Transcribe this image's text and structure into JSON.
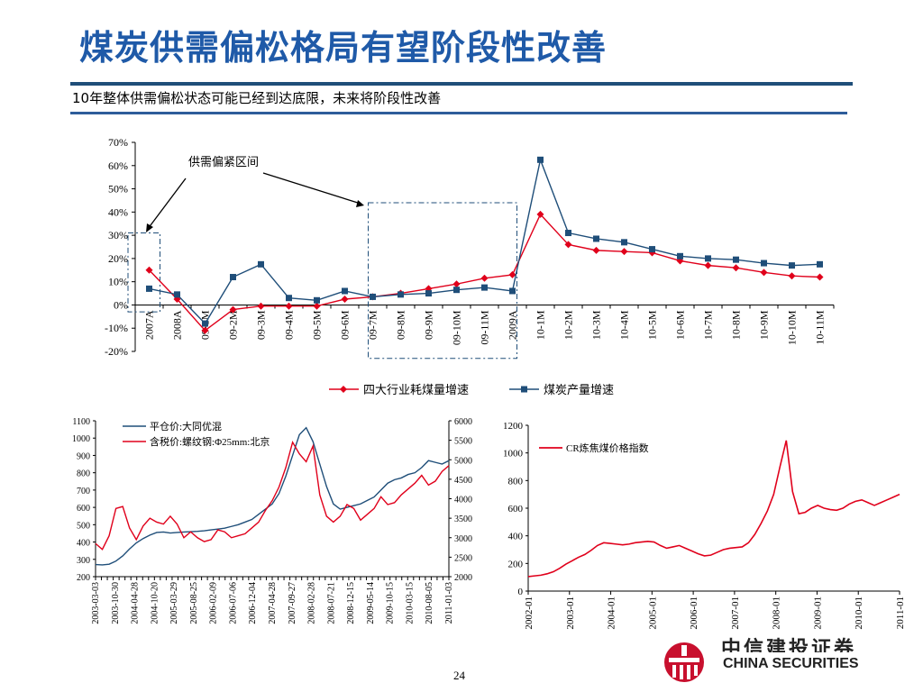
{
  "slide": {
    "title": "煤炭供需偏松格局有望阶段性改善",
    "subtitle": "10年整体供需偏松状态可能已经到达底限，未来将阶段性改善",
    "page_number": "24",
    "logo": {
      "cn": "中信建投证券",
      "en": "CHINA SECURITIES",
      "color": "#c8102e"
    }
  },
  "chart_data": [
    {
      "type": "line",
      "categories": [
        "2007A",
        "2008A",
        "09-1M",
        "09-2M",
        "09-3M",
        "09-4M",
        "09-5M",
        "09-6M",
        "09-7M",
        "09-8M",
        "09-9M",
        "09-10M",
        "09-11M",
        "2009A",
        "10-1M",
        "10-2M",
        "10-3M",
        "10-4M",
        "10-5M",
        "10-6M",
        "10-7M",
        "10-8M",
        "10-9M",
        "10-10M",
        "10-11M"
      ],
      "ylim": [
        -20,
        70
      ],
      "yticks": [
        "-20%",
        "-10%",
        "0%",
        "10%",
        "20%",
        "30%",
        "40%",
        "50%",
        "60%",
        "70%"
      ],
      "series": [
        {
          "name": "四大行业耗煤量增速",
          "color": "#e0001b",
          "marker": "diamond",
          "values": [
            15,
            2.5,
            -11,
            -2,
            -0.5,
            -0.5,
            -0.5,
            2.5,
            3.5,
            5,
            7,
            9,
            11.5,
            13,
            39,
            26,
            23.5,
            23,
            22.5,
            19,
            17,
            16,
            14,
            12.5,
            12
          ]
        },
        {
          "name": "煤炭产量增速",
          "color": "#1f4e79",
          "marker": "square",
          "values": [
            7,
            4.5,
            -8,
            12,
            17.5,
            3,
            2,
            6,
            3.5,
            4.5,
            5,
            6.5,
            7.5,
            6,
            62.5,
            31,
            28.5,
            27,
            24,
            21,
            20,
            19.5,
            18,
            17,
            17.5
          ]
        }
      ],
      "annotation": "供需偏紧区间",
      "legend": "bottom"
    },
    {
      "type": "line",
      "x_ticks": [
        "2003-03-03",
        "2003-10-30",
        "2004-04-28",
        "2004-10-20",
        "2005-03-29",
        "2005-08-25",
        "2006-02-09",
        "2006-07-06",
        "2006-12-04",
        "2007-04-28",
        "2007-09-27",
        "2008-02-28",
        "2008-07-21",
        "2008-12-15",
        "2009-05-14",
        "2009-10-15",
        "2010-03-15",
        "2010-08-05",
        "2011-01-03"
      ],
      "y_left": {
        "ylim": [
          200,
          1100
        ],
        "ticks": [
          "200",
          "300",
          "400",
          "500",
          "600",
          "700",
          "800",
          "900",
          "1000",
          "1100"
        ]
      },
      "y_right": {
        "ylim": [
          2000,
          6000
        ],
        "ticks": [
          "2000",
          "2500",
          "3000",
          "3500",
          "4000",
          "4500",
          "5000",
          "5500",
          "6000"
        ]
      },
      "series": [
        {
          "name": "平仓价:大同优混",
          "color": "#1f4e79",
          "axis": "left",
          "values": [
            270,
            268,
            272,
            290,
            320,
            360,
            395,
            420,
            440,
            455,
            458,
            452,
            455,
            458,
            460,
            462,
            465,
            470,
            475,
            480,
            490,
            500,
            515,
            530,
            560,
            590,
            620,
            680,
            780,
            900,
            1020,
            1060,
            980,
            850,
            720,
            620,
            590,
            600,
            610,
            620,
            640,
            660,
            700,
            740,
            760,
            770,
            790,
            800,
            830,
            870,
            860,
            850,
            870
          ]
        },
        {
          "name": "含税价:螺纹钢:Φ25mm:北京",
          "color": "#e0001b",
          "axis": "right",
          "values": [
            2850,
            2700,
            3050,
            3750,
            3800,
            3250,
            2950,
            3300,
            3500,
            3400,
            3350,
            3550,
            3350,
            3000,
            3150,
            3000,
            2900,
            2950,
            3200,
            3150,
            3000,
            3050,
            3100,
            3250,
            3400,
            3700,
            3950,
            4300,
            4800,
            5450,
            5150,
            4950,
            5350,
            4100,
            3550,
            3400,
            3550,
            3850,
            3750,
            3450,
            3600,
            3750,
            4050,
            3850,
            3900,
            4100,
            4250,
            4400,
            4600,
            4350,
            4450,
            4700,
            4850
          ]
        }
      ],
      "legend": "top-left"
    },
    {
      "type": "line",
      "x_ticks": [
        "2002-01",
        "2003-01",
        "2004-01",
        "2005-01",
        "2006-01",
        "2007-01",
        "2008-01",
        "2009-01",
        "2010-01",
        "2011-01"
      ],
      "ylim": [
        0,
        1200
      ],
      "yticks": [
        "0",
        "200",
        "400",
        "600",
        "800",
        "1000",
        "1200"
      ],
      "series": [
        {
          "name": "CR炼焦煤价格指数",
          "color": "#e0001b",
          "values": [
            105,
            110,
            115,
            125,
            140,
            165,
            195,
            220,
            245,
            265,
            295,
            330,
            350,
            345,
            340,
            335,
            340,
            350,
            355,
            360,
            355,
            330,
            310,
            320,
            330,
            310,
            290,
            270,
            255,
            260,
            280,
            300,
            310,
            315,
            320,
            350,
            410,
            490,
            580,
            700,
            900,
            1090,
            720,
            560,
            570,
            600,
            620,
            600,
            590,
            585,
            600,
            630,
            650,
            660,
            640,
            620,
            640,
            660,
            680,
            700
          ]
        }
      ],
      "legend": "top-right"
    }
  ]
}
